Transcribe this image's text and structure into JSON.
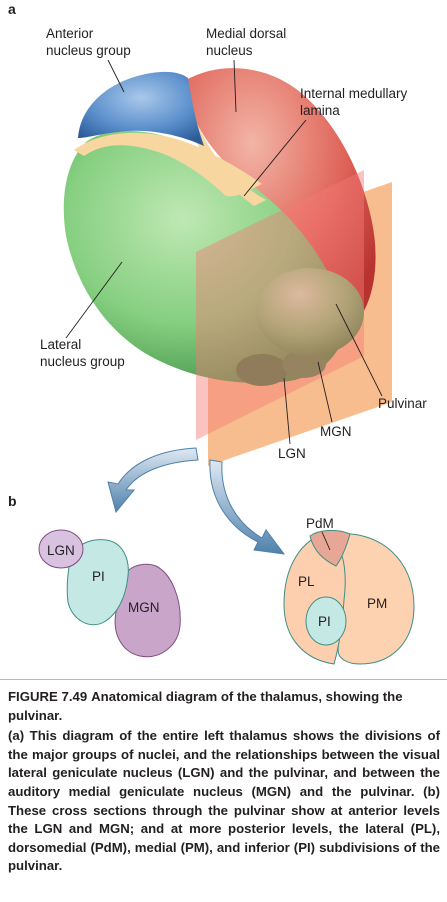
{
  "panels": {
    "a": "a",
    "b": "b"
  },
  "labels_a": {
    "anterior_line1": "Anterior",
    "anterior_line2": "nucleus group",
    "medial_dorsal_line1": "Medial dorsal",
    "medial_dorsal_line2": "nucleus",
    "internal_medullary_line1": "Internal medullary",
    "internal_medullary_line2": "lamina",
    "lateral_line1": "Lateral",
    "lateral_line2": "nucleus group",
    "pulvinar": "Pulvinar",
    "mgn": "MGN",
    "lgn": "LGN"
  },
  "labels_b": {
    "anterior_lgn": "LGN",
    "anterior_pi": "PI",
    "anterior_mgn": "MGN",
    "posterior_pdm": "PdM",
    "posterior_pl": "PL",
    "posterior_pm": "PM",
    "posterior_pi": "PI"
  },
  "colors": {
    "anterior": "#4f86c6",
    "medial_dorsal": "#d9534f",
    "lamina": "#f7d6a0",
    "lateral": "#79c77b",
    "pulvinar": "#5fb568",
    "plane_front": "#f59a85",
    "plane_back": "#f7b27a",
    "arrow": "#5d8fb6",
    "lgn_fill": "#d9c2e0",
    "pi_fill": "#c4e8e3",
    "mgn_fill": "#c9a6c9",
    "pl_fill": "#fdcfae",
    "pdm_fill": "#e8a796"
  },
  "caption": {
    "figure_number": "FIGURE 7.49",
    "title": "Anatomical diagram of the thalamus, showing the pulvinar.",
    "body": "(a) This diagram of the entire left thalamus shows the divisions of the major groups of nuclei, and the relationships between the visual lateral geniculate nucleus (LGN) and the pulvinar, and between the auditory medial geniculate nucleus (MGN) and the pulvinar. (b) These cross sections through the pulvinar show at anterior levels the LGN and MGN; and at more posterior levels, the lateral (PL), dorsomedial (PdM), medial (PM), and inferior (PI) subdivisions of the pulvinar."
  }
}
